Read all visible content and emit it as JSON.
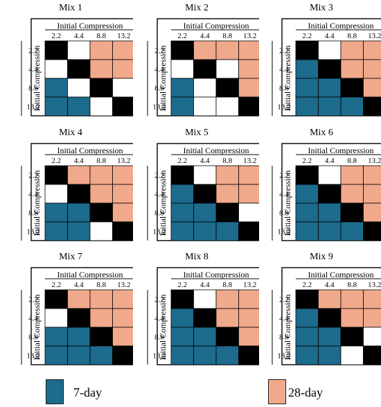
{
  "colors": {
    "seven_day": "#1d6b8d",
    "twenty_eight_day": "#f1a98b",
    "diagonal": "#000000",
    "none": "#ffffff"
  },
  "axis_label": "Initial Compression",
  "levels": [
    "2.2",
    "4.4",
    "8.8",
    "13.2"
  ],
  "legend": {
    "seven_day_label": "7-day",
    "twenty_eight_day_label": "28-day"
  },
  "mixes": [
    {
      "title": "Mix 1",
      "cells": [
        [
          "D",
          "W",
          "P",
          "P"
        ],
        [
          "W",
          "D",
          "P",
          "P"
        ],
        [
          "B",
          "W",
          "D",
          "W"
        ],
        [
          "B",
          "B",
          "W",
          "D"
        ]
      ]
    },
    {
      "title": "Mix 2",
      "cells": [
        [
          "D",
          "P",
          "P",
          "P"
        ],
        [
          "W",
          "D",
          "W",
          "P"
        ],
        [
          "B",
          "W",
          "D",
          "P"
        ],
        [
          "B",
          "W",
          "W",
          "D"
        ]
      ]
    },
    {
      "title": "Mix 3",
      "cells": [
        [
          "D",
          "W",
          "P",
          "P"
        ],
        [
          "B",
          "D",
          "P",
          "P"
        ],
        [
          "B",
          "B",
          "D",
          "P"
        ],
        [
          "B",
          "B",
          "B",
          "D"
        ]
      ]
    },
    {
      "title": "Mix 4",
      "cells": [
        [
          "D",
          "P",
          "P",
          "P"
        ],
        [
          "W",
          "D",
          "P",
          "P"
        ],
        [
          "B",
          "B",
          "D",
          "P"
        ],
        [
          "B",
          "B",
          "W",
          "D"
        ]
      ]
    },
    {
      "title": "Mix 5",
      "cells": [
        [
          "D",
          "W",
          "P",
          "P"
        ],
        [
          "B",
          "D",
          "P",
          "P"
        ],
        [
          "B",
          "B",
          "D",
          "W"
        ],
        [
          "B",
          "B",
          "B",
          "D"
        ]
      ]
    },
    {
      "title": "Mix 6",
      "cells": [
        [
          "D",
          "W",
          "P",
          "P"
        ],
        [
          "B",
          "D",
          "P",
          "P"
        ],
        [
          "B",
          "B",
          "D",
          "P"
        ],
        [
          "B",
          "B",
          "B",
          "D"
        ]
      ]
    },
    {
      "title": "Mix 7",
      "cells": [
        [
          "D",
          "P",
          "P",
          "P"
        ],
        [
          "W",
          "D",
          "P",
          "P"
        ],
        [
          "B",
          "B",
          "D",
          "P"
        ],
        [
          "B",
          "B",
          "B",
          "D"
        ]
      ]
    },
    {
      "title": "Mix 8",
      "cells": [
        [
          "D",
          "W",
          "P",
          "P"
        ],
        [
          "B",
          "D",
          "P",
          "P"
        ],
        [
          "B",
          "B",
          "D",
          "P"
        ],
        [
          "B",
          "B",
          "B",
          "D"
        ]
      ]
    },
    {
      "title": "Mix 9",
      "cells": [
        [
          "D",
          "P",
          "P",
          "P"
        ],
        [
          "B",
          "D",
          "P",
          "P"
        ],
        [
          "B",
          "B",
          "D",
          "W"
        ],
        [
          "B",
          "B",
          "W",
          "D"
        ]
      ]
    }
  ]
}
